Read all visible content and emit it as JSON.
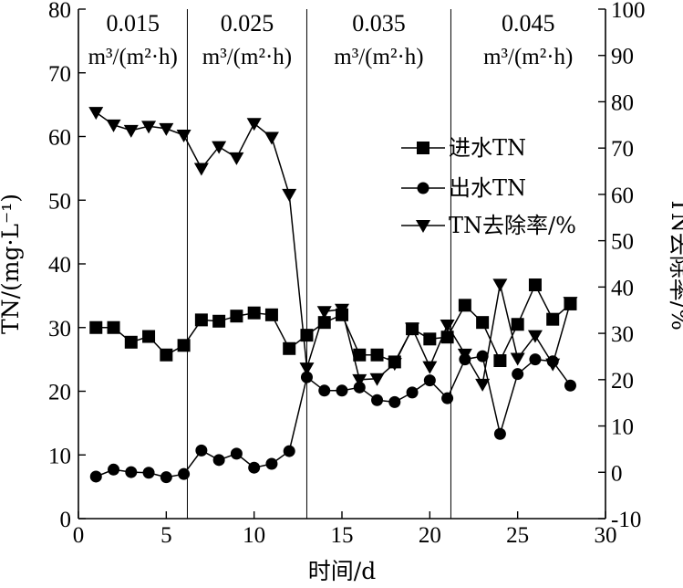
{
  "chart_data": {
    "type": "line",
    "xlabel": "时间/d",
    "ylabel_left": "TN/(mg·L⁻¹)",
    "ylabel_right": "TN去除率/%",
    "xlim": [
      0,
      30
    ],
    "ylim_left": [
      0,
      80
    ],
    "ylim_right": [
      -10,
      100
    ],
    "xticks": [
      0,
      5,
      10,
      15,
      20,
      25,
      30
    ],
    "yticks_left": [
      0,
      10,
      20,
      30,
      40,
      50,
      60,
      70,
      80
    ],
    "yticks_right": [
      -10,
      0,
      10,
      20,
      30,
      40,
      50,
      60,
      70,
      80,
      90,
      100
    ],
    "grid": false,
    "legend_position": "right",
    "period_boundaries": [
      6.2,
      13,
      21.2
    ],
    "periods": [
      {
        "value": "0.015",
        "unit": "m³/(m²·h)"
      },
      {
        "value": "0.025",
        "unit": "m³/(m²·h)"
      },
      {
        "value": "0.035",
        "unit": "m³/(m²·h)"
      },
      {
        "value": "0.045",
        "unit": "m³/(m²·h)"
      }
    ],
    "series": [
      {
        "name": "进水TN",
        "marker": "square",
        "axis": "left",
        "x": [
          1,
          2,
          3,
          4,
          5,
          6,
          7,
          8,
          9,
          10,
          11,
          12,
          13,
          14,
          15,
          16,
          17,
          18,
          19,
          20,
          21,
          22,
          23,
          24,
          25,
          26,
          27,
          28
        ],
        "y": [
          30,
          30,
          27.7,
          28.6,
          25.7,
          27.2,
          31.2,
          31,
          31.8,
          32.3,
          32,
          26.7,
          28.8,
          30.8,
          32,
          25.7,
          25.7,
          24.6,
          29.8,
          28.2,
          28.5,
          33.5,
          30.8,
          24.8,
          30.5,
          36.7,
          31.3,
          33.7
        ]
      },
      {
        "name": "出水TN",
        "marker": "circle",
        "axis": "left",
        "x": [
          1,
          2,
          3,
          4,
          5,
          6,
          7,
          8,
          9,
          10,
          11,
          12,
          13,
          14,
          15,
          16,
          17,
          18,
          19,
          20,
          21,
          22,
          23,
          24,
          25,
          26,
          27,
          28
        ],
        "y": [
          6.6,
          7.7,
          7.3,
          7.2,
          6.5,
          7,
          10.7,
          9.2,
          10.2,
          8,
          8.6,
          10.6,
          22.2,
          20.1,
          20.1,
          20.6,
          18.6,
          18.3,
          19.8,
          21.7,
          18.9,
          25,
          25.5,
          13.3,
          22.7,
          25,
          24.7,
          20.9
        ]
      },
      {
        "name": "TN去除率/%",
        "marker": "triangle-down",
        "axis": "right",
        "x": [
          1,
          2,
          3,
          4,
          5,
          6,
          7,
          8,
          9,
          10,
          11,
          12,
          13,
          14,
          15,
          16,
          17,
          18,
          19,
          20,
          21,
          22,
          23,
          24,
          25,
          26,
          27,
          28
        ],
        "y": [
          77.7,
          75,
          73.8,
          74.7,
          74.2,
          72.8,
          65.6,
          70.3,
          67.9,
          75.3,
          72.3,
          60,
          22.5,
          34.7,
          35.2,
          20,
          20.2,
          23.5,
          31.1,
          22.8,
          31.8,
          25.5,
          19,
          40.6,
          24.6,
          29.5,
          23.4,
          36.7
        ]
      }
    ]
  }
}
